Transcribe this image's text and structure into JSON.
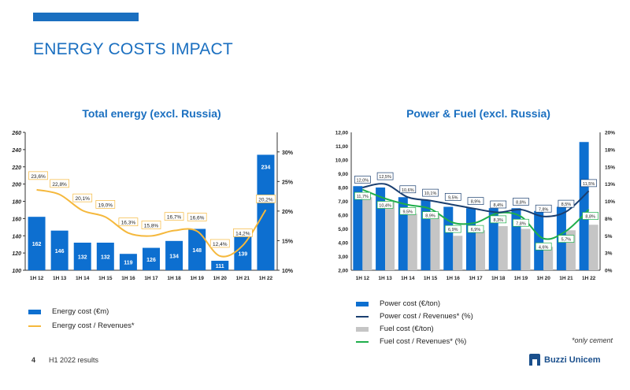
{
  "page": {
    "title": "ENERGY COSTS IMPACT",
    "page_number": "4",
    "footer_text": "H1 2022 results",
    "note": "*only cement",
    "logo_text": "Buzzi Unicem"
  },
  "colors": {
    "brand_blue": "#1a6fc0",
    "energy_bar": "#0d6fd0",
    "energy_line": "#f5b83c",
    "power_line": "#1b3f70",
    "fuel_bar": "#c5c5c5",
    "fuel_line": "#1fae4b"
  },
  "chart_data": [
    {
      "type": "bar",
      "title": "Total energy (excl. Russia)",
      "categories": [
        "1H 12",
        "1H 13",
        "1H 14",
        "1H 15",
        "1H 16",
        "1H 17",
        "1H 18",
        "1H 19",
        "1H 20",
        "1H 21",
        "1H 22"
      ],
      "series": [
        {
          "name": "Energy cost (€m)",
          "type": "bar",
          "axis": "left",
          "values": [
            162,
            146,
            132,
            132,
            119,
            126,
            134,
            148,
            111,
            139,
            234
          ]
        },
        {
          "name": "Energy cost / Revenues*",
          "type": "line",
          "axis": "right",
          "values": [
            23.6,
            22.8,
            20.1,
            19.0,
            16.3,
            15.8,
            16.7,
            16.6,
            12.4,
            14.2,
            20.2
          ],
          "labels": [
            "23,6%",
            "22,8%",
            "20,1%",
            "19,0%",
            "16,3%",
            "15,8%",
            "16,7%",
            "16,6%",
            "12,4%",
            "14,2%",
            "20,2%"
          ]
        }
      ],
      "bar_labels": [
        "162",
        "146",
        "132",
        "132",
        "119",
        "126",
        "134",
        "148",
        "111",
        "139",
        "234"
      ],
      "ylim": [
        100,
        260
      ],
      "yticks": [
        "100",
        "120",
        "140",
        "160",
        "180",
        "200",
        "220",
        "240",
        "260"
      ],
      "y2lim": [
        10,
        33.3
      ],
      "y2ticks": [
        "10%",
        "15%",
        "20%",
        "25%",
        "30%"
      ]
    },
    {
      "type": "bar",
      "title": "Power & Fuel (excl. Russia)",
      "categories": [
        "1H 12",
        "1H 13",
        "1H 14",
        "1H 15",
        "1H 16",
        "1H 17",
        "1H 18",
        "1H 19",
        "1H 20",
        "1H 21",
        "1H 22"
      ],
      "series": [
        {
          "name": "Power cost (€/ton)",
          "type": "bar",
          "axis": "left",
          "values": [
            8.1,
            8.0,
            7.3,
            7.1,
            6.6,
            6.5,
            6.5,
            6.5,
            6.3,
            6.6,
            11.3
          ]
        },
        {
          "name": "Fuel cost (€/ton)",
          "type": "bar",
          "axis": "left",
          "values": [
            7.3,
            7.0,
            6.1,
            6.0,
            4.5,
            4.9,
            5.2,
            5.0,
            3.7,
            4.9,
            5.3
          ]
        },
        {
          "name": "Power cost / Revenues* (%)",
          "type": "line",
          "axis": "right",
          "values": [
            12.0,
            12.5,
            10.6,
            10.1,
            9.5,
            8.9,
            8.4,
            8.8,
            7.8,
            8.5,
            11.5
          ],
          "labels": [
            "12,0%",
            "12,5%",
            "10,6%",
            "10,1%",
            "9,5%",
            "8,9%",
            "8,4%",
            "8,8%",
            "7,8%",
            "8,5%",
            "11,5%"
          ]
        },
        {
          "name": "Fuel cost / Revenues* (%)",
          "type": "line",
          "axis": "right",
          "values": [
            11.7,
            10.4,
            9.5,
            8.9,
            6.9,
            6.9,
            8.3,
            7.8,
            4.6,
            5.7,
            8.8
          ],
          "labels": [
            "11,7%",
            "10,4%",
            "9,5%",
            "8,9%",
            "6,9%",
            "6,9%",
            "8,3%",
            "7,8%",
            "4,6%",
            "5,7%",
            "8,8%"
          ]
        }
      ],
      "ylim": [
        2,
        12
      ],
      "yticks": [
        "2,00",
        "3,00",
        "4,00",
        "5,00",
        "6,00",
        "7,00",
        "8,00",
        "9,00",
        "10,00",
        "11,00",
        "12,00"
      ],
      "y2lim": [
        0,
        20
      ],
      "y2ticks": [
        "0%",
        "3%",
        "5%",
        "8%",
        "10%",
        "13%",
        "15%",
        "18%",
        "20%"
      ]
    }
  ]
}
